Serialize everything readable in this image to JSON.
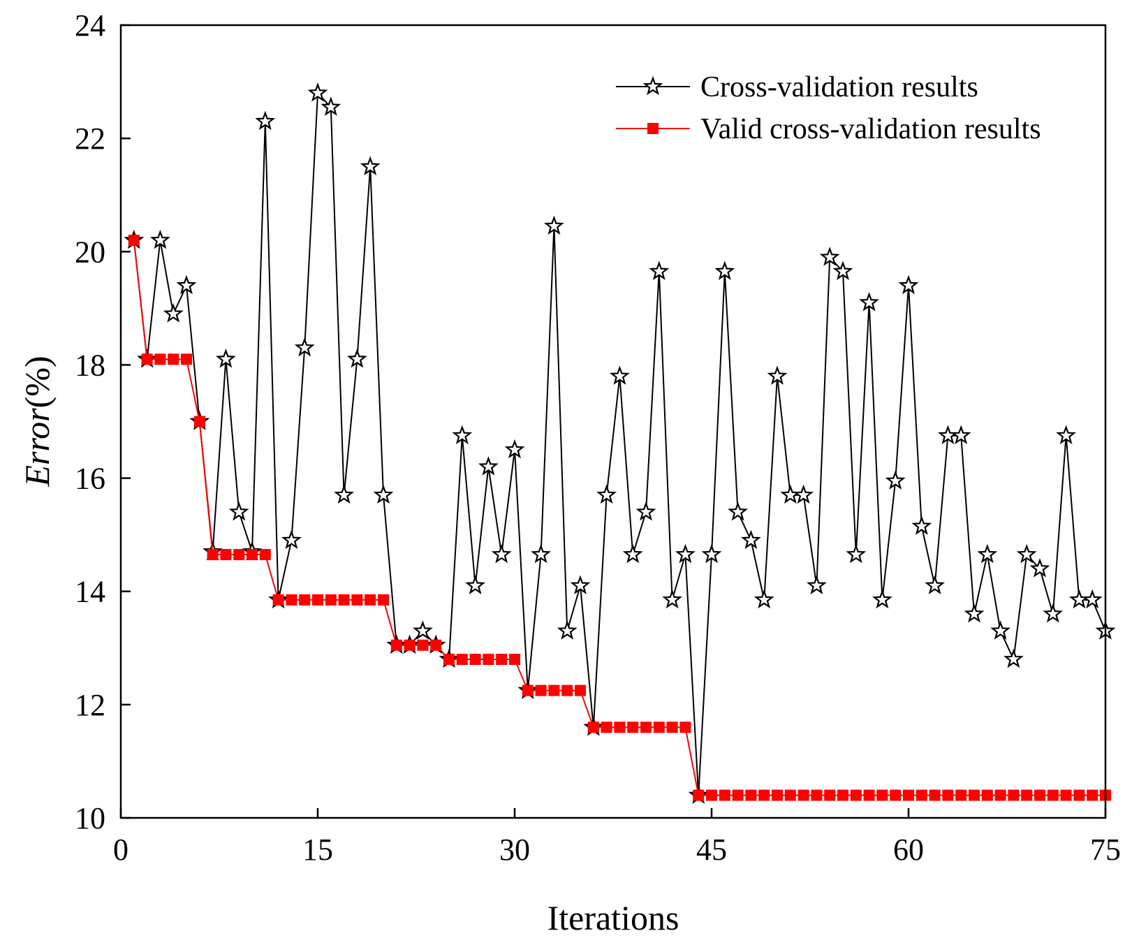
{
  "chart_data": {
    "type": "line",
    "xlabel": "Iterations",
    "ylabel": {
      "italic": "Error",
      "suffix": "(%)"
    },
    "xlim": [
      0,
      75
    ],
    "ylim": [
      10,
      24
    ],
    "xticks": [
      0,
      15,
      30,
      45,
      60,
      75
    ],
    "yticks": [
      10,
      12,
      14,
      16,
      18,
      20,
      22,
      24
    ],
    "grid": false,
    "legend_position": "top-right",
    "series": [
      {
        "name": "Cross-validation results",
        "color": "#000000",
        "marker": "star-open",
        "x": [
          1,
          2,
          3,
          4,
          5,
          6,
          7,
          8,
          9,
          10,
          11,
          12,
          13,
          14,
          15,
          16,
          17,
          18,
          19,
          20,
          21,
          22,
          23,
          24,
          25,
          26,
          27,
          28,
          29,
          30,
          31,
          32,
          33,
          34,
          35,
          36,
          37,
          38,
          39,
          40,
          41,
          42,
          43,
          44,
          45,
          46,
          47,
          48,
          49,
          50,
          51,
          52,
          53,
          54,
          55,
          56,
          57,
          58,
          59,
          60,
          61,
          62,
          63,
          64,
          65,
          66,
          67,
          68,
          69,
          70,
          71,
          72,
          73,
          74,
          75
        ],
        "y": [
          20.2,
          18.1,
          20.2,
          18.9,
          19.4,
          17.0,
          14.7,
          18.1,
          15.4,
          14.7,
          22.3,
          13.85,
          14.9,
          18.3,
          22.8,
          22.55,
          15.7,
          18.1,
          21.5,
          15.7,
          13.05,
          13.05,
          13.3,
          13.05,
          12.8,
          16.75,
          14.1,
          16.2,
          14.65,
          16.5,
          12.25,
          14.65,
          20.45,
          13.3,
          14.1,
          11.6,
          15.7,
          17.8,
          14.65,
          15.4,
          19.65,
          13.85,
          14.65,
          10.4,
          14.65,
          19.65,
          15.4,
          14.9,
          13.85,
          17.8,
          15.7,
          15.7,
          14.1,
          19.9,
          19.65,
          14.65,
          19.1,
          13.85,
          15.95,
          19.4,
          15.15,
          14.1,
          16.75,
          16.75,
          13.6,
          14.65,
          13.3,
          12.8,
          14.65,
          14.4,
          13.6,
          16.75,
          13.85,
          13.85,
          13.3
        ]
      },
      {
        "name": "Valid cross-validation results",
        "color": "#ff0000",
        "marker": "square-filled",
        "x": [
          1,
          2,
          3,
          4,
          5,
          6,
          7,
          8,
          9,
          10,
          11,
          12,
          13,
          14,
          15,
          16,
          17,
          18,
          19,
          20,
          21,
          22,
          23,
          24,
          25,
          26,
          27,
          28,
          29,
          30,
          31,
          32,
          33,
          34,
          35,
          36,
          37,
          38,
          39,
          40,
          41,
          42,
          43,
          44,
          45,
          46,
          47,
          48,
          49,
          50,
          51,
          52,
          53,
          54,
          55,
          56,
          57,
          58,
          59,
          60,
          61,
          62,
          63,
          64,
          65,
          66,
          67,
          68,
          69,
          70,
          71,
          72,
          73,
          74,
          75
        ],
        "y": [
          20.2,
          18.1,
          18.1,
          18.1,
          18.1,
          17.0,
          14.65,
          14.65,
          14.65,
          14.65,
          14.65,
          13.85,
          13.85,
          13.85,
          13.85,
          13.85,
          13.85,
          13.85,
          13.85,
          13.85,
          13.05,
          13.05,
          13.05,
          13.05,
          12.8,
          12.8,
          12.8,
          12.8,
          12.8,
          12.8,
          12.25,
          12.25,
          12.25,
          12.25,
          12.25,
          11.6,
          11.6,
          11.6,
          11.6,
          11.6,
          11.6,
          11.6,
          11.6,
          10.4,
          10.4,
          10.4,
          10.4,
          10.4,
          10.4,
          10.4,
          10.4,
          10.4,
          10.4,
          10.4,
          10.4,
          10.4,
          10.4,
          10.4,
          10.4,
          10.4,
          10.4,
          10.4,
          10.4,
          10.4,
          10.4,
          10.4,
          10.4,
          10.4,
          10.4,
          10.4,
          10.4,
          10.4,
          10.4,
          10.4,
          10.4
        ]
      }
    ]
  }
}
